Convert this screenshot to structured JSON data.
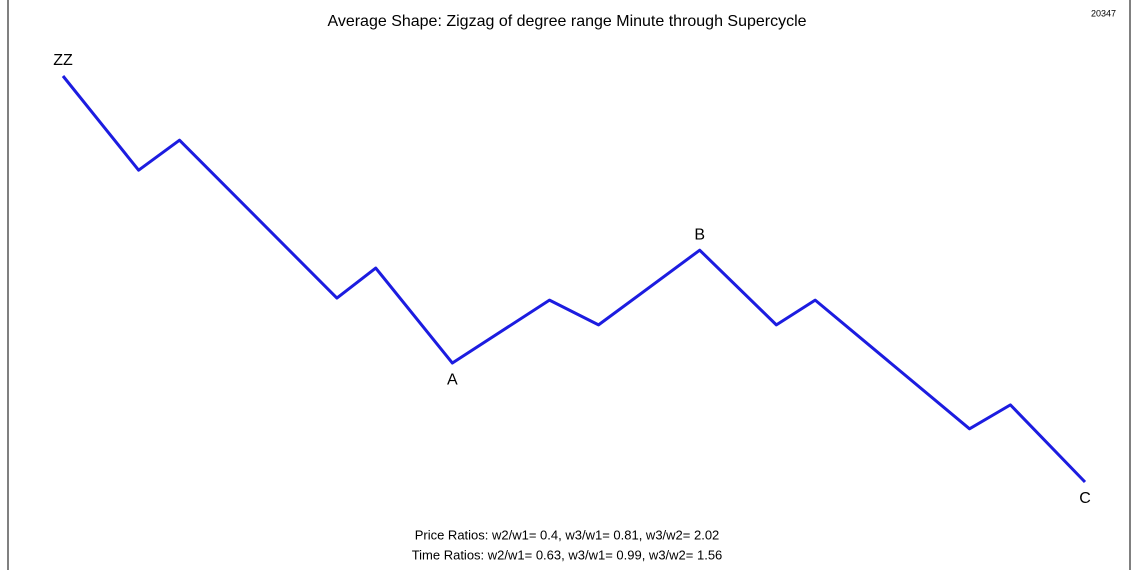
{
  "chart_data": {
    "type": "line",
    "title": "Average Shape: Zigzag of degree range Minute through Supercycle",
    "id_label": "20347",
    "x": [
      0,
      7.4,
      11.4,
      26.8,
      30.6,
      38.1,
      47.6,
      52.4,
      62.3,
      69.8,
      73.6,
      88.7,
      92.7,
      100
    ],
    "series": [
      {
        "color": "#1c1ce0",
        "values": [
          100,
          76.8,
          84.2,
          45.3,
          52.7,
          29.3,
          44.8,
          38.7,
          57.1,
          38.7,
          44.8,
          13.1,
          19.0,
          0
        ]
      }
    ],
    "point_labels": [
      "ZZ",
      null,
      null,
      null,
      null,
      "A",
      null,
      null,
      "B",
      null,
      null,
      null,
      null,
      "C"
    ],
    "xlim": [
      0,
      100
    ],
    "ylim": [
      0,
      100
    ],
    "notes": [
      "Price Ratios: w2/w1= 0.4, w3/w1= 0.81, w3/w2= 2.02",
      "Time Ratios: w2/w1= 0.63, w3/w1= 0.99, w3/w2= 1.56"
    ]
  }
}
